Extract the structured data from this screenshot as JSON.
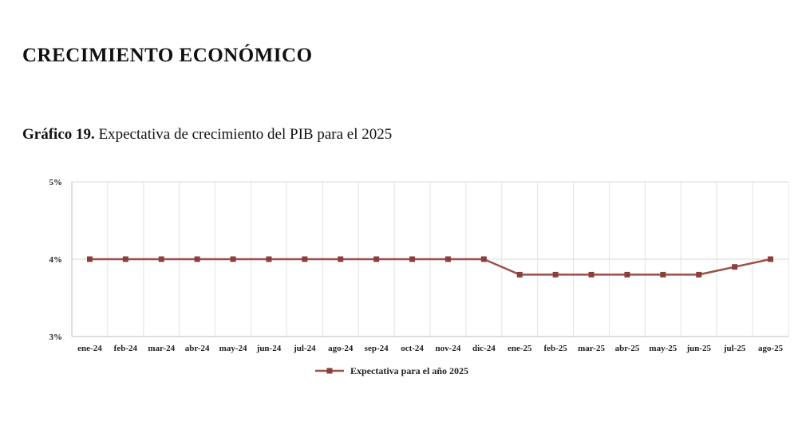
{
  "section": {
    "title": "CRECIMIENTO ECONÓMICO"
  },
  "caption": {
    "label": "Gráfico 19.",
    "text": "Expectativa de crecimiento del PIB para el 2025"
  },
  "chart_data": {
    "type": "line",
    "title": "",
    "xlabel": "",
    "ylabel": "",
    "categories": [
      "ene-24",
      "feb-24",
      "mar-24",
      "abr-24",
      "may-24",
      "jun-24",
      "jul-24",
      "ago-24",
      "sep-24",
      "oct-24",
      "nov-24",
      "dic-24",
      "ene-25",
      "feb-25",
      "mar-25",
      "abr-25",
      "may-25",
      "jun-25",
      "jul-25",
      "ago-25"
    ],
    "series": [
      {
        "name": "Expectativa para el año 2025",
        "values": [
          4.0,
          4.0,
          4.0,
          4.0,
          4.0,
          4.0,
          4.0,
          4.0,
          4.0,
          4.0,
          4.0,
          4.0,
          3.8,
          3.8,
          3.8,
          3.8,
          3.8,
          3.8,
          3.9,
          4.0
        ],
        "color": "#9b4f4a",
        "marker": "square"
      }
    ],
    "ylim": [
      3,
      5
    ],
    "yticks": [
      3,
      4,
      5
    ],
    "ytick_labels": [
      "3%",
      "4%",
      "5%"
    ],
    "grid": true,
    "legend_position": "bottom"
  }
}
